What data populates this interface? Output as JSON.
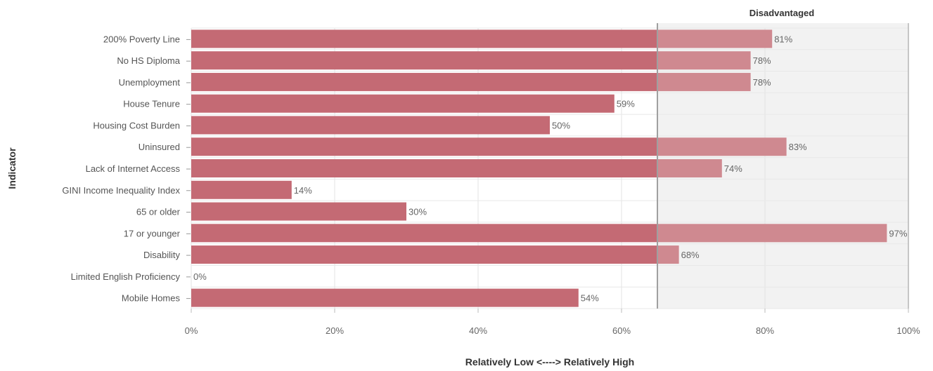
{
  "chart_data": {
    "type": "bar",
    "orientation": "horizontal",
    "categories": [
      "200% Poverty Line",
      "No HS Diploma",
      "Unemployment",
      "House Tenure",
      "Housing Cost Burden",
      "Uninsured",
      "Lack of Internet Access",
      "GINI Income Inequality Index",
      "65 or older",
      "17 or younger",
      "Disability",
      "Limited English Proficiency",
      "Mobile Homes"
    ],
    "values": [
      81,
      78,
      78,
      59,
      50,
      83,
      74,
      14,
      30,
      97,
      68,
      0,
      54
    ],
    "value_labels": [
      "81%",
      "78%",
      "78%",
      "59%",
      "50%",
      "83%",
      "74%",
      "14%",
      "30%",
      "97%",
      "68%",
      "0%",
      "54%"
    ],
    "xlabel": "Relatively Low <----> Relatively High",
    "ylabel": "Indicator",
    "xlim": [
      0,
      100
    ],
    "x_ticks": [
      0,
      20,
      40,
      60,
      80,
      100
    ],
    "x_tick_labels": [
      "0%",
      "20%",
      "40%",
      "60%",
      "80%",
      "100%"
    ],
    "threshold": 65,
    "threshold_region_label": "Disadvantaged",
    "grid": true,
    "colors": {
      "bar": "#c46a74",
      "bar_in_region": "#cf8990",
      "region_fill": "#f2f2f2",
      "threshold_line": "#a0a0a0"
    }
  }
}
